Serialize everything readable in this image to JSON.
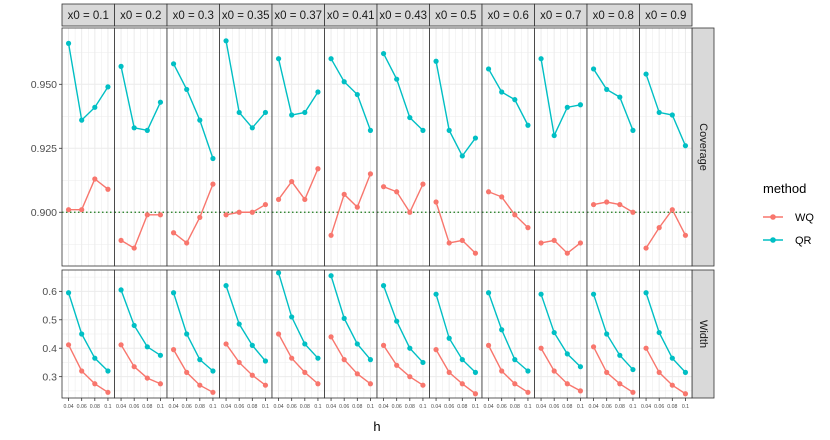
{
  "chart_data": {
    "type": "line",
    "xlabel": "h",
    "x": [
      0.04,
      0.06,
      0.08,
      0.1
    ],
    "x_tick_labels": [
      "0.04",
      "0.06",
      "0.08",
      "0.1"
    ],
    "facet_columns": [
      "x0 = 0.1",
      "x0 = 0.2",
      "x0 = 0.3",
      "x0 = 0.35",
      "x0 = 0.37",
      "x0 = 0.41",
      "x0 = 0.43",
      "x0 = 0.5",
      "x0 = 0.6",
      "x0 = 0.7",
      "x0 = 0.8",
      "x0 = 0.9"
    ],
    "facet_rows": [
      {
        "label": "Coverage",
        "ylim": [
          0.879,
          0.972
        ],
        "yticks": [
          0.9,
          0.925,
          0.95
        ],
        "ytick_labels": [
          "0.900",
          "0.925",
          "0.950"
        ],
        "reference_line": 0.9,
        "series": [
          {
            "name": "WQ",
            "values": [
              [
                0.901,
                0.901,
                0.913,
                0.909
              ],
              [
                0.889,
                0.886,
                0.899,
                0.899
              ],
              [
                0.892,
                0.888,
                0.898,
                0.911
              ],
              [
                0.899,
                0.9,
                0.9,
                0.903
              ],
              [
                0.905,
                0.912,
                0.905,
                0.917
              ],
              [
                0.891,
                0.907,
                0.902,
                0.915
              ],
              [
                0.91,
                0.908,
                0.9,
                0.911
              ],
              [
                0.904,
                0.888,
                0.889,
                0.884
              ],
              [
                0.908,
                0.906,
                0.899,
                0.894
              ],
              [
                0.888,
                0.889,
                0.884,
                0.888
              ],
              [
                0.903,
                0.904,
                0.903,
                0.9
              ],
              [
                0.886,
                0.894,
                0.901,
                0.891
              ]
            ]
          },
          {
            "name": "QR",
            "values": [
              [
                0.966,
                0.936,
                0.941,
                0.949
              ],
              [
                0.957,
                0.933,
                0.932,
                0.943
              ],
              [
                0.958,
                0.948,
                0.936,
                0.921
              ],
              [
                0.967,
                0.939,
                0.933,
                0.939
              ],
              [
                0.96,
                0.938,
                0.939,
                0.947
              ],
              [
                0.96,
                0.951,
                0.946,
                0.932
              ],
              [
                0.962,
                0.952,
                0.937,
                0.932
              ],
              [
                0.959,
                0.932,
                0.922,
                0.929
              ],
              [
                0.956,
                0.947,
                0.944,
                0.934
              ],
              [
                0.96,
                0.93,
                0.941,
                0.942
              ],
              [
                0.956,
                0.948,
                0.945,
                0.932
              ],
              [
                0.954,
                0.939,
                0.938,
                0.926
              ]
            ]
          }
        ]
      },
      {
        "label": "Width",
        "ylim": [
          0.225,
          0.675
        ],
        "yticks": [
          0.3,
          0.4,
          0.5,
          0.6
        ],
        "ytick_labels": [
          "0.3",
          "0.4",
          "0.5",
          "0.6"
        ],
        "series": [
          {
            "name": "WQ",
            "values": [
              [
                0.412,
                0.32,
                0.275,
                0.245
              ],
              [
                0.412,
                0.335,
                0.295,
                0.275
              ],
              [
                0.395,
                0.315,
                0.27,
                0.245
              ],
              [
                0.415,
                0.35,
                0.305,
                0.27
              ],
              [
                0.45,
                0.365,
                0.315,
                0.275
              ],
              [
                0.44,
                0.36,
                0.31,
                0.275
              ],
              [
                0.41,
                0.34,
                0.3,
                0.27
              ],
              [
                0.395,
                0.315,
                0.275,
                0.24
              ],
              [
                0.41,
                0.32,
                0.275,
                0.245
              ],
              [
                0.4,
                0.32,
                0.275,
                0.25
              ],
              [
                0.405,
                0.315,
                0.275,
                0.245
              ],
              [
                0.4,
                0.315,
                0.27,
                0.24
              ]
            ]
          },
          {
            "name": "QR",
            "values": [
              [
                0.595,
                0.45,
                0.365,
                0.32
              ],
              [
                0.605,
                0.48,
                0.405,
                0.375
              ],
              [
                0.595,
                0.45,
                0.36,
                0.32
              ],
              [
                0.62,
                0.485,
                0.41,
                0.355
              ],
              [
                0.665,
                0.51,
                0.415,
                0.365
              ],
              [
                0.655,
                0.505,
                0.415,
                0.36
              ],
              [
                0.62,
                0.495,
                0.4,
                0.35
              ],
              [
                0.59,
                0.435,
                0.36,
                0.315
              ],
              [
                0.595,
                0.465,
                0.36,
                0.32
              ],
              [
                0.59,
                0.455,
                0.38,
                0.335
              ],
              [
                0.59,
                0.45,
                0.375,
                0.325
              ],
              [
                0.595,
                0.455,
                0.365,
                0.315
              ]
            ]
          }
        ]
      }
    ],
    "legend": {
      "title": "method",
      "placement": "right",
      "entries": [
        {
          "name": "WQ",
          "color": "#F8766D"
        },
        {
          "name": "QR",
          "color": "#00BFC4"
        }
      ]
    },
    "colors": {
      "WQ": "#F8766D",
      "QR": "#00BFC4",
      "reference_line": "#1a7a1a",
      "strip_fill": "#d9d9d9",
      "grid": "#ebebeb"
    },
    "grid": true
  }
}
